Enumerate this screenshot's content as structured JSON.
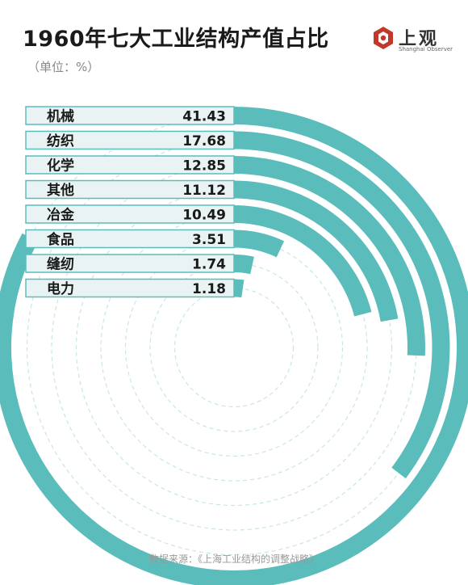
{
  "header": {
    "title": "1960年七大工业结构产值占比",
    "unit": "（单位：%）"
  },
  "logo": {
    "name": "上观",
    "subtitle": "Shanghai Observer",
    "icon": "hexagon-logo-icon",
    "color": "#c0392b"
  },
  "footer": {
    "source": "数据来源：《上海工业结构的调整战略》"
  },
  "colors": {
    "accent": "#5bbdbb",
    "label_bg": "#e9f3f3",
    "label_border": "#5bbdbb",
    "guide": "#c9e6e5",
    "text": "#1a1a1a"
  },
  "chart_data": {
    "type": "radial-bar",
    "title": "1960年七大工业结构产值占比",
    "unit": "%",
    "categories": [
      "机械",
      "纺织",
      "化学",
      "其他",
      "冶金",
      "食品",
      "缝纫",
      "电力"
    ],
    "values": [
      41.43,
      17.68,
      12.85,
      11.12,
      10.49,
      3.51,
      1.74,
      1.18
    ],
    "value_labels": [
      "41.43",
      "17.68",
      "12.85",
      "11.12",
      "10.49",
      "3.51",
      "1.74",
      "1.18"
    ],
    "full_circle_value": 50
  }
}
